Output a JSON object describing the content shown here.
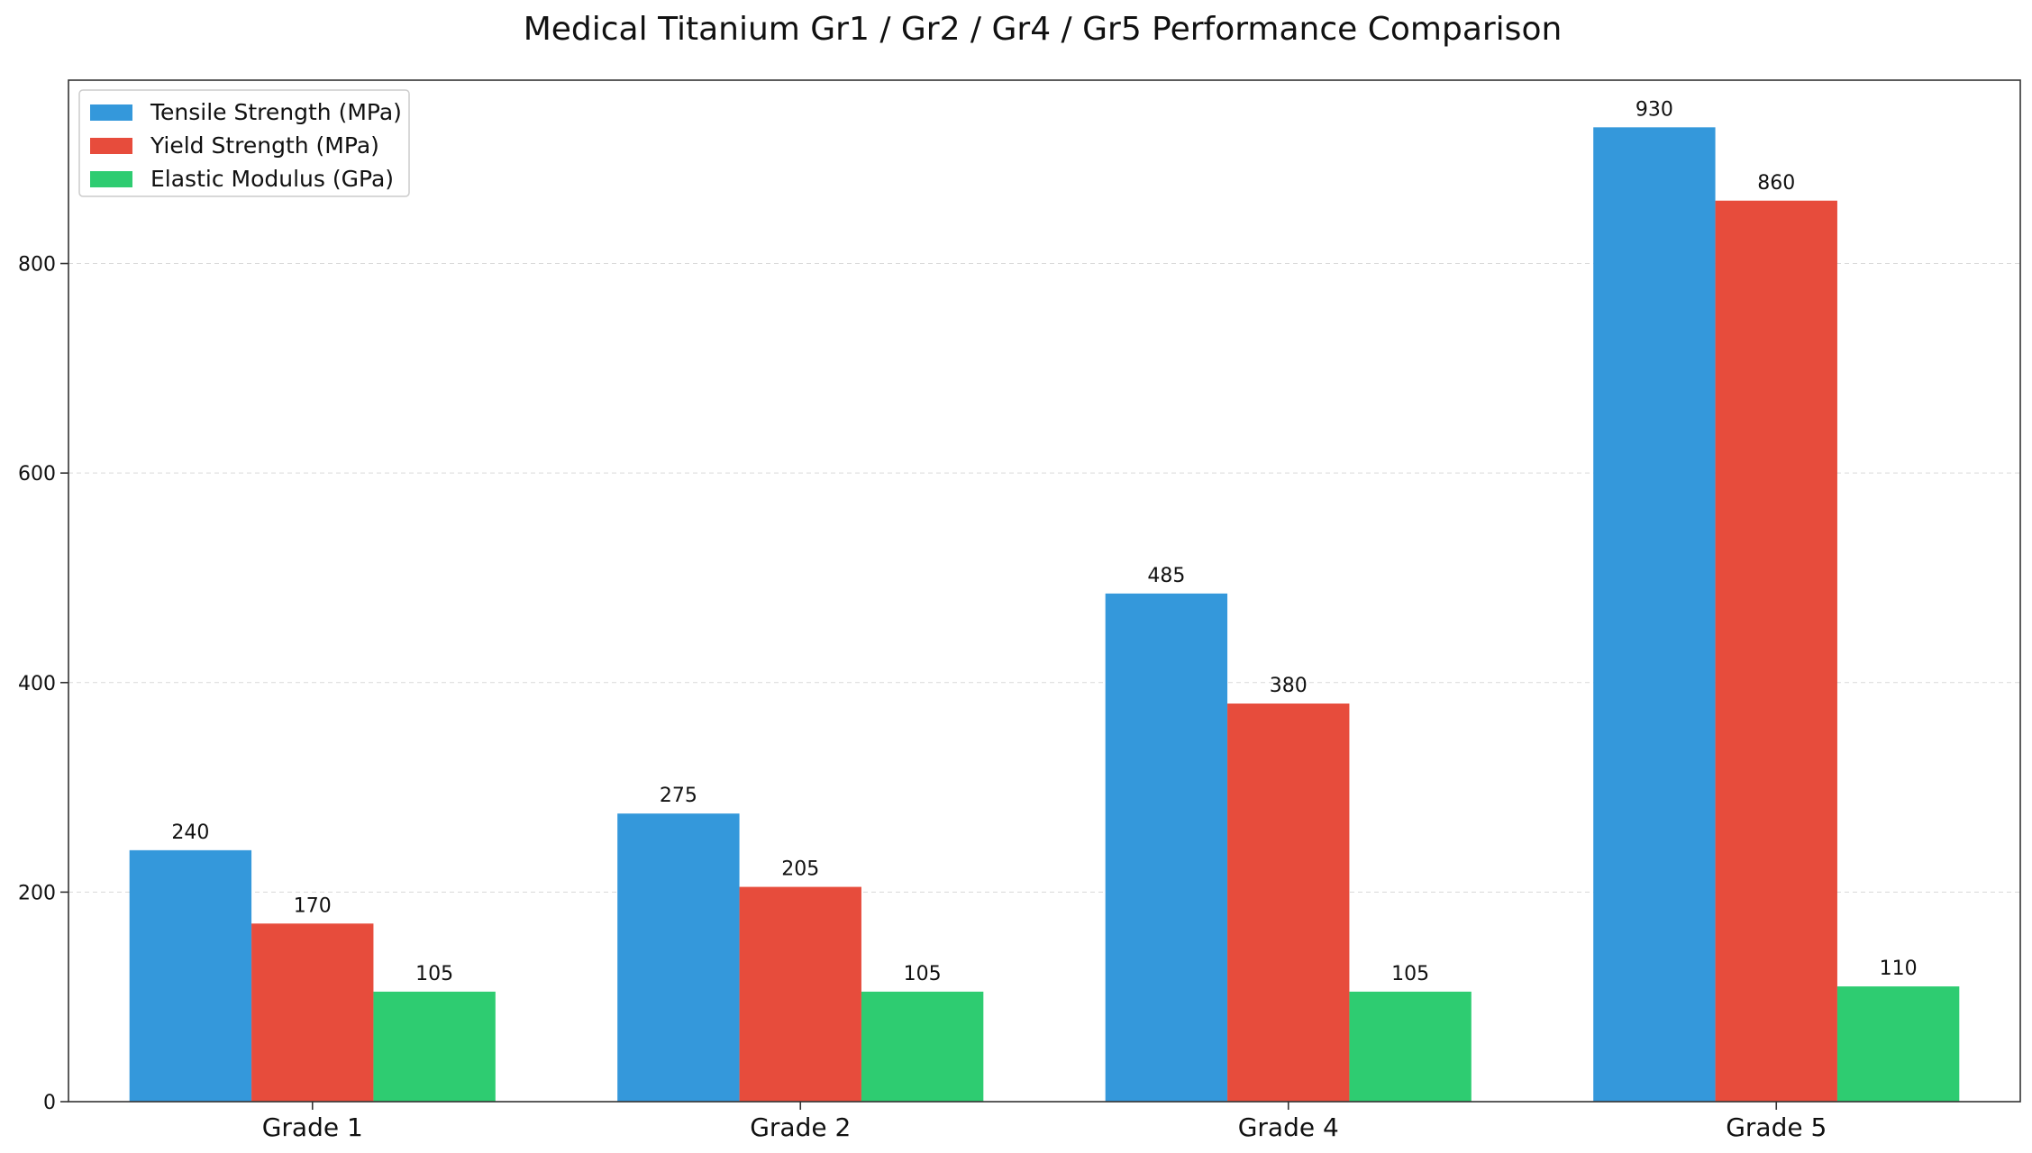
{
  "chart_data": {
    "type": "bar",
    "title": "Medical Titanium Gr1 / Gr2 / Gr4 / Gr5 Performance Comparison",
    "xlabel": "",
    "ylabel": "",
    "categories": [
      "Grade 1",
      "Grade 2",
      "Grade 4",
      "Grade 5"
    ],
    "series": [
      {
        "name": "Tensile Strength (MPa)",
        "color": "#3498db",
        "values": [
          240,
          275,
          485,
          930
        ]
      },
      {
        "name": "Yield Strength (MPa)",
        "color": "#e74c3c",
        "values": [
          170,
          205,
          380,
          860
        ]
      },
      {
        "name": "Elastic Modulus (GPa)",
        "color": "#2ecc71",
        "values": [
          105,
          105,
          105,
          110
        ]
      }
    ],
    "ylim": [
      0,
      975
    ],
    "yticks": [
      0,
      200,
      400,
      600,
      800
    ],
    "grid": true,
    "legend_position": "top-left",
    "data_labels": true
  }
}
